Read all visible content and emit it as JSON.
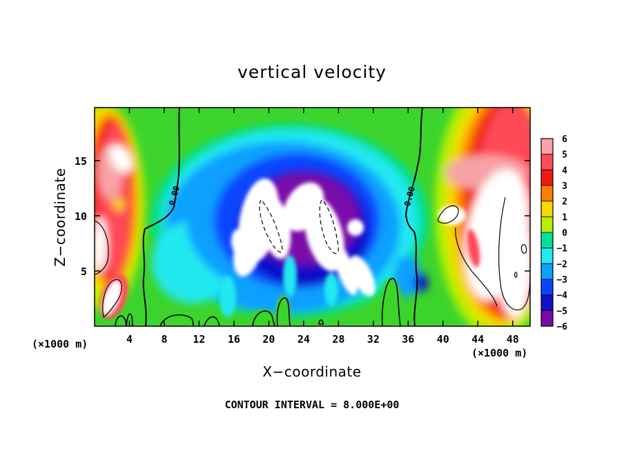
{
  "chart_data": {
    "type": "heatmap",
    "title": "vertical velocity",
    "xlabel": "X−coordinate",
    "ylabel": "Z−coordinate",
    "x_unit_left": "(×1000 m)",
    "x_unit_right": "(×1000 m)",
    "xlim": [
      0,
      50
    ],
    "ylim": [
      0,
      19.8
    ],
    "xticks": [
      "4",
      "8",
      "12",
      "16",
      "20",
      "24",
      "28",
      "32",
      "36",
      "40",
      "44",
      "48"
    ],
    "yticks": [
      "5",
      "10",
      "15"
    ],
    "contour_interval_text": "CONTOUR INTERVAL = 8.000E+00",
    "zero_contour_labels": [
      "0.00",
      "0.00"
    ],
    "colorbar": {
      "labels": [
        "6",
        "5",
        "4",
        "3",
        "2",
        "1",
        "0",
        "−1",
        "−2",
        "−3",
        "−4",
        "−5",
        "−6"
      ],
      "values": [
        6,
        5,
        4,
        3,
        2,
        1,
        0,
        -1,
        -2,
        -3,
        -4,
        -5,
        -6
      ]
    },
    "colors": {
      "v6": "#f7a3a6",
      "v5": "#ff4a58",
      "v4": "#ee1c10",
      "v3": "#ff7e00",
      "v2": "#f6d800",
      "v1": "#b6f000",
      "v0": "#3cd42c",
      "vm1": "#00e09c",
      "vm2": "#22e8f0",
      "vm3": "#0ea0ff",
      "vm4": "#0a44ff",
      "vm5": "#1010c8",
      "vm6": "#7a0aa8",
      "above": "#ffffff",
      "below": "#ffffff"
    }
  }
}
